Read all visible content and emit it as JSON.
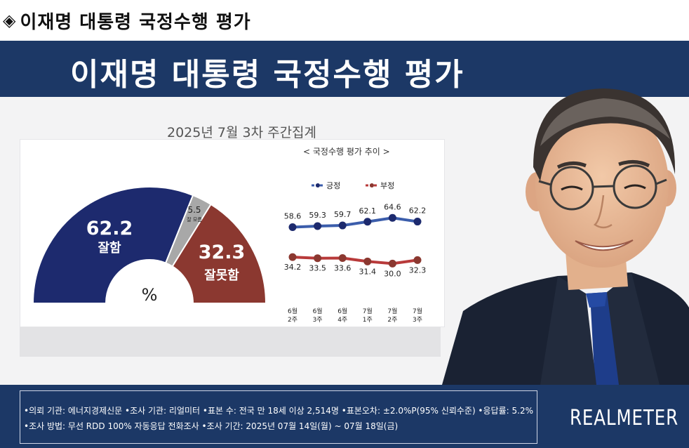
{
  "heading": {
    "symbol": "◈",
    "text": "이재명 대통령 국정수행 평가"
  },
  "banner": {
    "title": "이재명 대통령 국정수행 평가"
  },
  "subtitle": "2025년 7월 3차 주간집계",
  "colors": {
    "positive": "#1d2a6e",
    "negative": "#8b3830",
    "neutral": "#a8a8a8",
    "banner": "#1c3866",
    "trend_pos": "#3b5dab",
    "trend_neg": "#b83a3a"
  },
  "chart_data": [
    {
      "type": "pie",
      "title": "",
      "unit_label": "%",
      "slices": [
        {
          "label": "잘함",
          "value": 62.2
        },
        {
          "label": "잘 모름",
          "value": 5.5
        },
        {
          "label": "잘못함",
          "value": 32.3
        }
      ]
    },
    {
      "type": "line",
      "title": "< 국정수행 평가 추이 >",
      "categories": [
        "6월 2주",
        "6월 3주",
        "6월 4주",
        "7월 1주",
        "7월 2주",
        "7월 3주"
      ],
      "category_lines": [
        [
          "6월",
          "2주"
        ],
        [
          "6월",
          "3주"
        ],
        [
          "6월",
          "4주"
        ],
        [
          "7월",
          "1주"
        ],
        [
          "7월",
          "2주"
        ],
        [
          "7월",
          "3주"
        ]
      ],
      "series": [
        {
          "name": "긍정",
          "values": [
            58.6,
            59.3,
            59.7,
            62.1,
            64.6,
            62.2
          ]
        },
        {
          "name": "부정",
          "values": [
            34.2,
            33.5,
            33.6,
            31.4,
            30.0,
            32.3
          ]
        }
      ],
      "legend_position": "top"
    }
  ],
  "footer": {
    "line1": "•의뢰 기관: 에너지경제신문 •조사 기관: 리얼미터 •표본 수: 전국 만 18세 이상 2,514명 •표본오차: ±2.0%P(95% 신뢰수준) •응답률: 5.2%",
    "line2": "•조사 방법: 무선 RDD 100% 자동응답 전화조사 •조사 기간: 2025년 07월 14일(월) ~ 07월 18일(금)",
    "brand": "REALMETER"
  }
}
